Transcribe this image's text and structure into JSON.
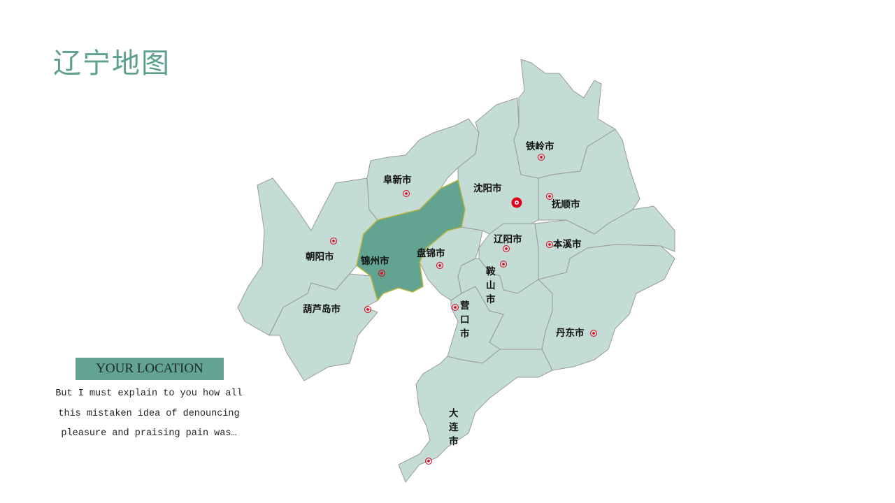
{
  "title": "辽宁地图",
  "location_badge": "YOUR LOCATION",
  "description": "But I must explain to you how all this mistaken idea of denouncing pleasure and praising pain was…",
  "colors": {
    "region": "#c3dcd6",
    "highlight": "#62a392",
    "title": "#5ea08f",
    "marker": "#e0001b"
  },
  "map": {
    "highlighted": "锦州市",
    "capital": "沈阳市",
    "cities": [
      {
        "id": "chaoyang",
        "name": "朝阳市"
      },
      {
        "id": "huludao",
        "name": "葫芦岛市"
      },
      {
        "id": "jinzhou",
        "name": "锦州市"
      },
      {
        "id": "fuxin",
        "name": "阜新市"
      },
      {
        "id": "panjin",
        "name": "盘锦市"
      },
      {
        "id": "shenyang",
        "name": "沈阳市"
      },
      {
        "id": "tieling",
        "name": "铁岭市"
      },
      {
        "id": "fushun",
        "name": "抚顺市"
      },
      {
        "id": "benxi",
        "name": "本溪市"
      },
      {
        "id": "liaoyang",
        "name": "辽阳市"
      },
      {
        "id": "anshan",
        "name": "鞍山市"
      },
      {
        "id": "yingkou",
        "name": "营口市"
      },
      {
        "id": "dandong",
        "name": "丹东市"
      },
      {
        "id": "dalian",
        "name": "大连市"
      }
    ]
  }
}
